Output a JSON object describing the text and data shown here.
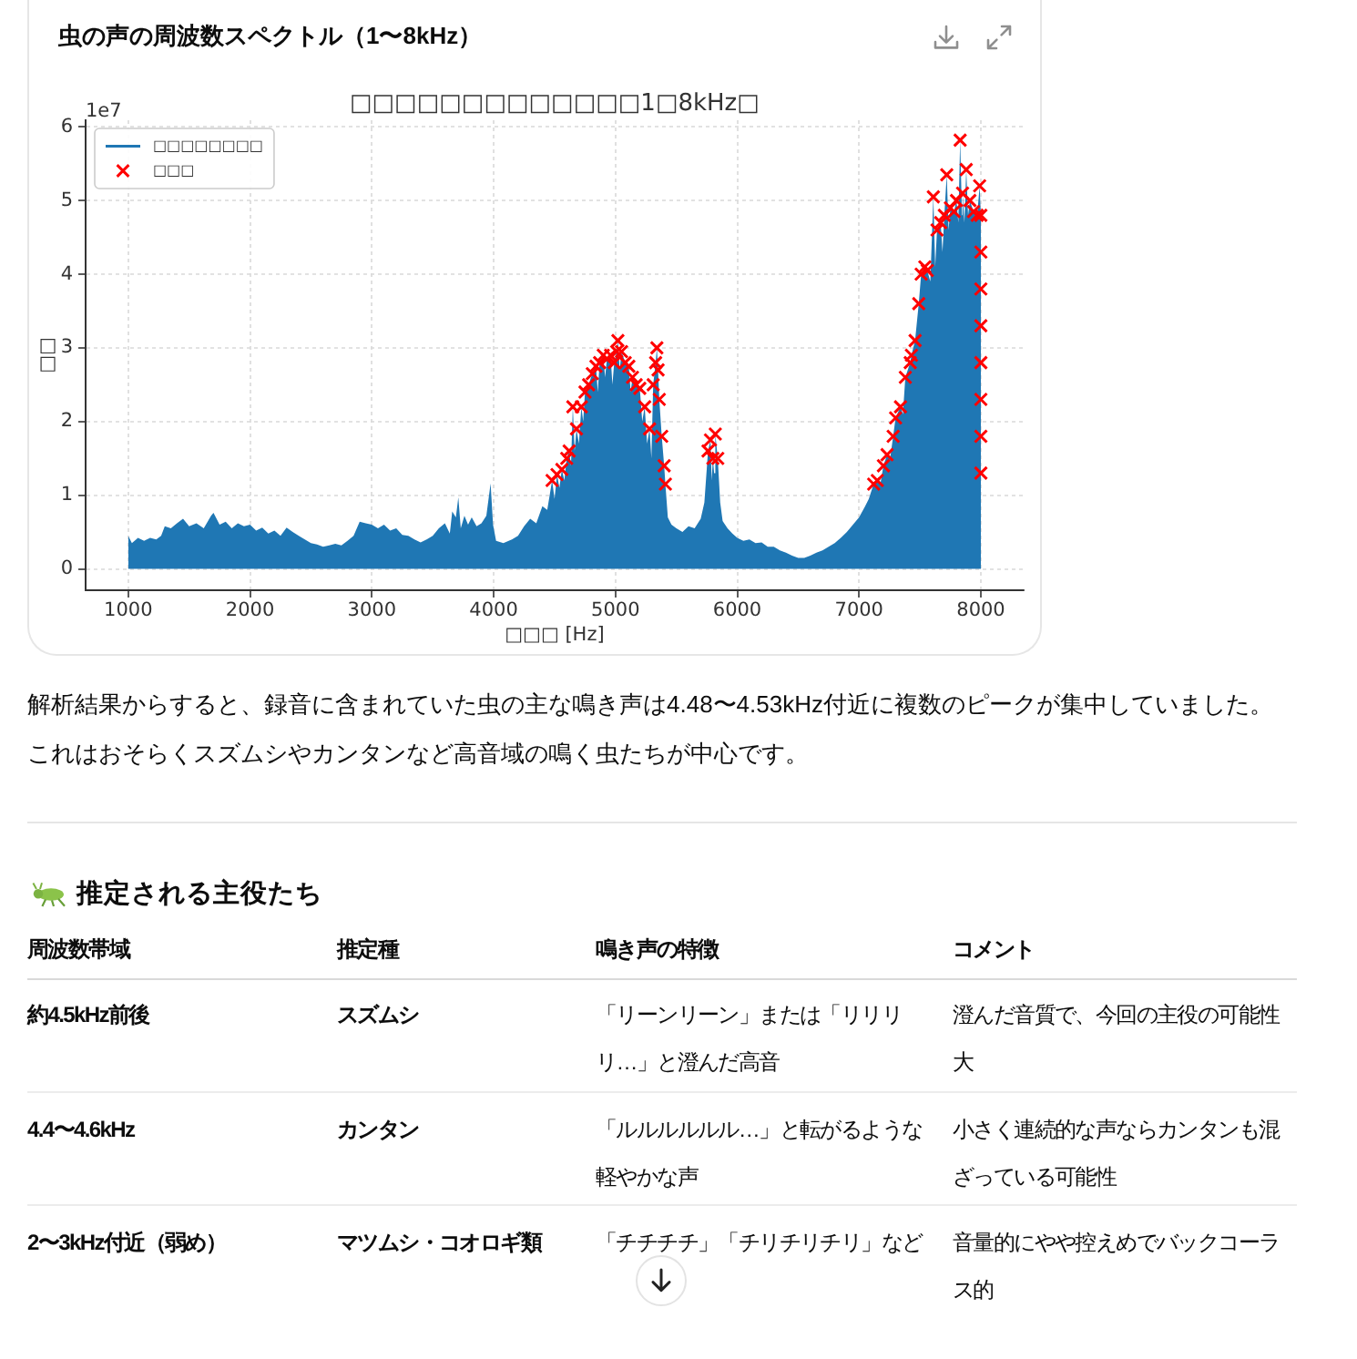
{
  "chart_data": {
    "type": "area",
    "title": "虫の声の周波数スペクトル（1〜8kHz）",
    "subtitle": "□□□□□□□□□□□□□1□8kHz□",
    "xlabel": "□□□ [Hz]",
    "ylabel": "□□",
    "xlim": [
      650,
      8350
    ],
    "xticks": [
      1000,
      2000,
      3000,
      4000,
      5000,
      6000,
      7000,
      8000
    ],
    "ylim": [
      -0.29,
      6.09
    ],
    "yticks": [
      0,
      1,
      2,
      3,
      4,
      5,
      6
    ],
    "grid": true,
    "legend": "top left",
    "series": [
      {
        "name": "□□□□□□□□",
        "color": "#1f77b4",
        "x": [
          1000,
          1030,
          1080,
          1130,
          1180,
          1230,
          1270,
          1300,
          1350,
          1400,
          1450,
          1500,
          1560,
          1620,
          1680,
          1700,
          1750,
          1800,
          1850,
          1900,
          1950,
          2000,
          2050,
          2100,
          2150,
          2200,
          2250,
          2300,
          2350,
          2400,
          2450,
          2500,
          2550,
          2600,
          2650,
          2700,
          2750,
          2800,
          2850,
          2900,
          2950,
          3000,
          3050,
          3100,
          3150,
          3200,
          3250,
          3300,
          3350,
          3400,
          3450,
          3500,
          3550,
          3600,
          3640,
          3660,
          3690,
          3710,
          3730,
          3760,
          3790,
          3820,
          3860,
          3900,
          3940,
          3975,
          3995,
          4020,
          4080,
          4150,
          4200,
          4250,
          4300,
          4350,
          4400,
          4440,
          4460,
          4480,
          4500,
          4520,
          4540,
          4560,
          4580,
          4600,
          4620,
          4635,
          4650,
          4665,
          4680,
          4700,
          4720,
          4735,
          4750,
          4780,
          4810,
          4840,
          4855,
          4870,
          4900,
          4915,
          4930,
          4960,
          4975,
          4990,
          5010,
          5020,
          5035,
          5050,
          5080,
          5110,
          5125,
          5140,
          5170,
          5200,
          5220,
          5240,
          5260,
          5280,
          5295,
          5310,
          5330,
          5340,
          5350,
          5360,
          5380,
          5400,
          5410,
          5430,
          5460,
          5500,
          5550,
          5600,
          5650,
          5700,
          5730,
          5760,
          5780,
          5790,
          5800,
          5810,
          5820,
          5840,
          5860,
          5880,
          5920,
          5960,
          6000,
          6050,
          6100,
          6150,
          6200,
          6250,
          6300,
          6350,
          6400,
          6450,
          6500,
          6550,
          6600,
          6650,
          6700,
          6750,
          6800,
          6850,
          6900,
          6950,
          7000,
          7050,
          7080,
          7100,
          7120,
          7150,
          7175,
          7200,
          7230,
          7255,
          7280,
          7300,
          7340,
          7360,
          7380,
          7420,
          7430,
          7460,
          7490,
          7510,
          7540,
          7560,
          7585,
          7610,
          7625,
          7640,
          7670,
          7685,
          7700,
          7720,
          7735,
          7750,
          7780,
          7800,
          7815,
          7830,
          7845,
          7850,
          7865,
          7880,
          7895,
          7910,
          7940,
          7970,
          7990,
          8000
        ],
        "values": [
          0.45,
          0.35,
          0.42,
          0.38,
          0.42,
          0.4,
          0.45,
          0.58,
          0.55,
          0.62,
          0.68,
          0.58,
          0.62,
          0.55,
          0.72,
          0.76,
          0.6,
          0.64,
          0.55,
          0.62,
          0.58,
          0.6,
          0.52,
          0.56,
          0.48,
          0.52,
          0.45,
          0.56,
          0.5,
          0.45,
          0.4,
          0.35,
          0.33,
          0.3,
          0.32,
          0.34,
          0.32,
          0.38,
          0.45,
          0.64,
          0.62,
          0.6,
          0.55,
          0.6,
          0.52,
          0.55,
          0.46,
          0.45,
          0.4,
          0.36,
          0.4,
          0.45,
          0.55,
          0.62,
          0.48,
          0.78,
          0.7,
          0.97,
          0.55,
          0.72,
          0.6,
          0.7,
          0.58,
          0.62,
          0.72,
          1.16,
          0.6,
          0.38,
          0.35,
          0.4,
          0.45,
          0.58,
          0.68,
          0.62,
          0.85,
          0.8,
          1.0,
          1.2,
          0.95,
          1.28,
          1.1,
          1.35,
          1.2,
          1.5,
          1.6,
          1.4,
          2.2,
          1.6,
          1.9,
          1.7,
          2.2,
          2.0,
          2.4,
          2.5,
          2.65,
          2.75,
          2.4,
          2.8,
          2.9,
          2.6,
          2.85,
          2.9,
          2.5,
          2.8,
          2.95,
          3.1,
          2.7,
          2.95,
          2.8,
          2.75,
          2.4,
          2.6,
          2.5,
          2.45,
          2.0,
          2.2,
          1.7,
          1.9,
          1.5,
          2.5,
          2.8,
          3.0,
          2.7,
          2.3,
          1.8,
          1.4,
          1.15,
          0.7,
          0.6,
          0.55,
          0.5,
          0.58,
          0.55,
          0.68,
          0.9,
          1.6,
          1.75,
          1.2,
          1.5,
          1.3,
          1.83,
          1.5,
          0.9,
          0.65,
          0.55,
          0.48,
          0.42,
          0.38,
          0.4,
          0.35,
          0.36,
          0.3,
          0.3,
          0.25,
          0.22,
          0.18,
          0.15,
          0.15,
          0.18,
          0.22,
          0.25,
          0.3,
          0.35,
          0.42,
          0.5,
          0.6,
          0.7,
          0.85,
          0.95,
          1.05,
          1.15,
          1.2,
          1.15,
          1.4,
          1.55,
          1.5,
          1.8,
          2.05,
          2.2,
          2.1,
          2.6,
          2.8,
          2.9,
          3.1,
          3.6,
          4.0,
          4.1,
          4.05,
          3.9,
          5.05,
          4.1,
          4.6,
          4.7,
          4.3,
          4.8,
          5.35,
          4.6,
          4.9,
          4.85,
          5.0,
          4.7,
          5.82,
          4.8,
          5.1,
          4.7,
          5.42,
          4.8,
          5.0,
          4.85,
          4.8,
          5.2,
          4.8
        ]
      },
      {
        "name": "□□□",
        "type": "scatter",
        "marker": "cross",
        "color": "#ff0000",
        "x": [
          4480,
          4520,
          4560,
          4600,
          4620,
          4650,
          4680,
          4720,
          4750,
          4780,
          4810,
          4840,
          4870,
          4900,
          4930,
          4960,
          4990,
          5010,
          5020,
          5050,
          5080,
          5110,
          5140,
          5170,
          5200,
          5240,
          5280,
          5310,
          5330,
          5340,
          5350,
          5360,
          5380,
          5400,
          5410,
          5760,
          5780,
          5800,
          5820,
          5840,
          7120,
          7150,
          7200,
          7230,
          7280,
          7300,
          7340,
          7380,
          7420,
          7430,
          7460,
          7490,
          7510,
          7540,
          7560,
          7610,
          7640,
          7670,
          7700,
          7720,
          7750,
          7780,
          7800,
          7830,
          7850,
          7880,
          7910,
          7940,
          7970,
          7990,
          8000,
          8000,
          8000,
          8000,
          8000,
          8000,
          8000,
          8000
        ],
        "values": [
          1.2,
          1.28,
          1.35,
          1.5,
          1.6,
          2.2,
          1.9,
          2.2,
          2.4,
          2.5,
          2.65,
          2.75,
          2.8,
          2.9,
          2.85,
          2.9,
          2.8,
          2.95,
          3.1,
          2.95,
          2.8,
          2.75,
          2.6,
          2.5,
          2.45,
          2.2,
          1.9,
          2.5,
          2.8,
          3.0,
          2.7,
          2.3,
          1.8,
          1.4,
          1.15,
          1.6,
          1.75,
          1.5,
          1.83,
          1.5,
          1.15,
          1.2,
          1.4,
          1.55,
          1.8,
          2.05,
          2.2,
          2.6,
          2.8,
          2.9,
          3.1,
          3.6,
          4.0,
          4.1,
          4.05,
          5.05,
          4.6,
          4.7,
          4.8,
          5.35,
          4.9,
          4.85,
          5.0,
          5.82,
          5.1,
          5.42,
          5.0,
          4.85,
          4.8,
          5.2,
          4.8,
          4.3,
          3.8,
          3.3,
          2.8,
          2.3,
          1.8,
          1.3
        ]
      }
    ],
    "annotations": [
      "1e7",
      "解析結果からすると、録音に含まれていた虫の主な鳴き声は4.48〜4.53kHz付近に複数のピークが集中していました。",
      "これはおそらくスズムシやカンタンなど高音域の鳴く虫たちが中心です。",
      "推定される主役たち",
      "周波数帯域",
      "推定種",
      "鳴き声の特徴",
      "コメント",
      "約4.5kHz前後",
      "スズムシ",
      "「リーンリーン」または「リリリリ…」と澄んだ高音",
      "澄んだ音質で、今回の主役の可能性大",
      "4.4〜4.6kHz",
      "カンタン",
      "「ルルルルルル…」と転がるような軽やかな声",
      "小さく連続的な声ならカンタンも混ざっている可能性",
      "2〜3kHz付近（弱め）",
      "マツムシ・コオロギ類",
      "「チチチチ」「チリチリチリ」など",
      "音量的にやや控えめでバックコーラス的"
    ]
  }
}
